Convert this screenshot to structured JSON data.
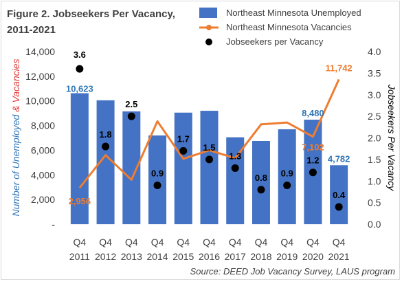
{
  "title_line1": "Figure 2. Jobseekers Per Vacancy,",
  "title_line2": "2011-2021",
  "source": "Source: DEED Job Vacancy Survey, LAUS program",
  "colors": {
    "bars": "#4472c4",
    "line": "#ed7d31",
    "dots": "#000000",
    "unemployed_label": "#2e75b6",
    "vacancy_label": "#ed7d31",
    "ratio_label": "#000000",
    "ylabel_left_blue": "#2e75b6",
    "ylabel_left_red": "#e23636"
  },
  "chart_data": {
    "type": "bar",
    "categories": [
      "Q4 2011",
      "Q4 2012",
      "Q4 2013",
      "Q4 2014",
      "Q4 2015",
      "Q4 2016",
      "Q4 2017",
      "Q4 2018",
      "Q4 2019",
      "Q4 2020",
      "Q4 2021"
    ],
    "category_line1": [
      "Q4",
      "Q4",
      "Q4",
      "Q4",
      "Q4",
      "Q4",
      "Q4",
      "Q4",
      "Q4",
      "Q4",
      "Q4"
    ],
    "category_line2": [
      "2011",
      "2012",
      "2013",
      "2014",
      "2015",
      "2016",
      "2017",
      "2018",
      "2019",
      "2020",
      "2021"
    ],
    "series": [
      {
        "name": "Northeast Minnesota Unemployed",
        "type": "bar",
        "axis": "left",
        "values": [
          10623,
          10050,
          9150,
          7200,
          9050,
          9200,
          7050,
          6750,
          7700,
          8480,
          4782
        ]
      },
      {
        "name": "Northeast Minnesota Vacancies",
        "type": "line",
        "axis": "left",
        "values": [
          2956,
          5600,
          3600,
          8350,
          5300,
          6000,
          5350,
          8100,
          8250,
          7102,
          11742
        ]
      },
      {
        "name": "Jobseekers per Vacancy",
        "type": "scatter",
        "axis": "right",
        "values": [
          3.6,
          1.8,
          2.5,
          0.9,
          1.7,
          1.5,
          1.3,
          0.8,
          0.9,
          1.2,
          0.4
        ]
      }
    ],
    "data_labels": {
      "unemployed": [
        {
          "index": 0,
          "text": "10,623"
        },
        {
          "index": 9,
          "text": "8,480"
        },
        {
          "index": 10,
          "text": "4,782"
        }
      ],
      "vacancies": [
        {
          "index": 0,
          "text": "2,956"
        },
        {
          "index": 9,
          "text": "7,102"
        },
        {
          "index": 10,
          "text": "11,742"
        }
      ],
      "ratio": [
        "3.6",
        "1.8",
        "2.5",
        "0.9",
        "1.7",
        "1.5",
        "1.3",
        "0.8",
        "0.9",
        "1.2",
        "0.4"
      ]
    },
    "ylabel_left_part1": "Number of Unemployed ",
    "ylabel_left_part2": "& Vacancies",
    "ylabel_right": "Jobseekers Per Vacancy",
    "ylim": [
      0,
      14000
    ],
    "y_ticks": [
      "-",
      "2,000",
      "4,000",
      "6,000",
      "8,000",
      "10,000",
      "12,000",
      "14,000"
    ],
    "y2lim": [
      0,
      4.0
    ],
    "y2_ticks": [
      "0.0",
      "0.5",
      "1.0",
      "1.5",
      "2.0",
      "2.5",
      "3.0",
      "3.5",
      "4.0"
    ],
    "grid": false,
    "legend_position": "top-right"
  }
}
